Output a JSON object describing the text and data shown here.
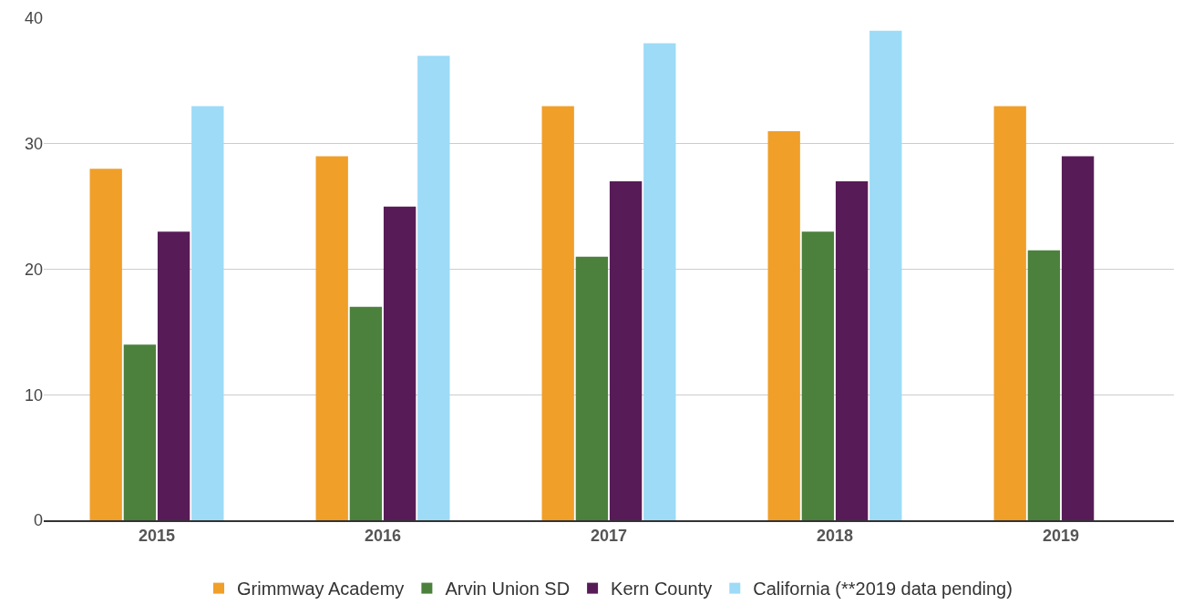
{
  "chart_data": {
    "type": "bar",
    "categories": [
      "2015",
      "2016",
      "2017",
      "2018",
      "2019"
    ],
    "series": [
      {
        "name": "Grimmway Academy",
        "color": "#f09f29",
        "values": [
          28,
          29,
          33,
          31,
          33
        ]
      },
      {
        "name": "Arvin Union SD",
        "color": "#4b813d",
        "values": [
          14,
          17,
          21,
          23,
          21.5
        ]
      },
      {
        "name": "Kern County",
        "color": "#571c57",
        "values": [
          23,
          25,
          27,
          27,
          29
        ]
      },
      {
        "name": "California (**2019 data pending)",
        "color": "#9ddbf7",
        "values": [
          33,
          37,
          38,
          39,
          null
        ]
      }
    ],
    "ylim": [
      0,
      40
    ],
    "yticks": [
      0,
      10,
      20,
      30,
      40
    ],
    "grid": "y",
    "legend": "bottom"
  }
}
